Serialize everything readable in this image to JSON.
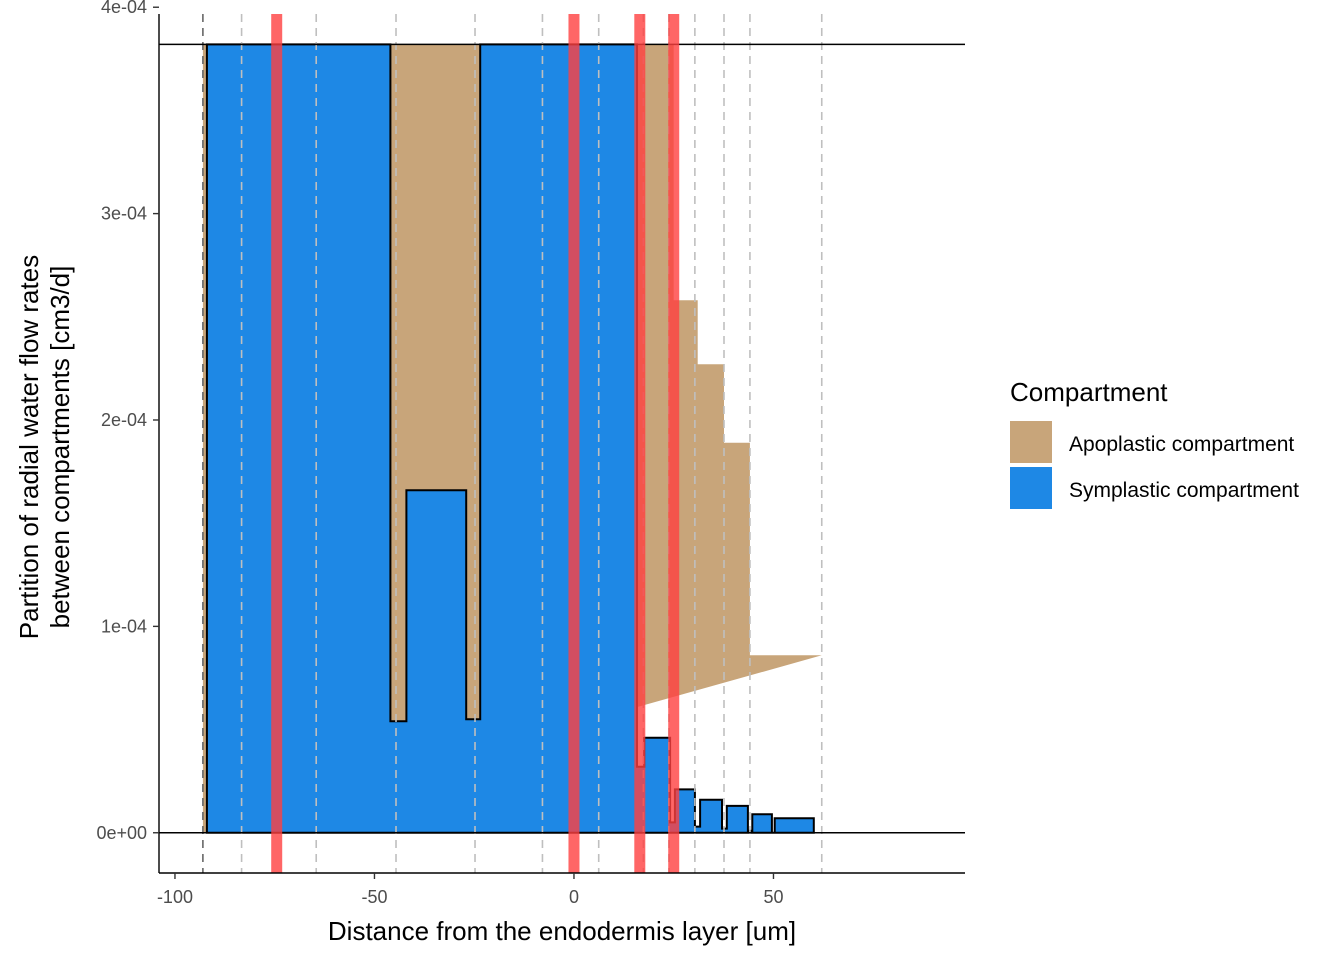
{
  "chart_data": {
    "type": "area",
    "xlabel": "Distance from the endodermis layer [um]",
    "ylabel": [
      "Partition of radial water flow rates",
      "between compartments [cm3/d]"
    ],
    "xlim": [
      -104,
      98
    ],
    "ylim": [
      -1.95e-05,
      0.0004035
    ],
    "x_ticks": [
      {
        "value": -100,
        "label": "-100"
      },
      {
        "value": -50,
        "label": "-50"
      },
      {
        "value": 0,
        "label": "0"
      },
      {
        "value": 50,
        "label": "50"
      }
    ],
    "y_ticks": [
      {
        "value": 0,
        "label": "0e+00"
      },
      {
        "value": 0.0001,
        "label": "1e-04"
      },
      {
        "value": 0.0002,
        "label": "2e-04"
      },
      {
        "value": 0.0003,
        "label": "3e-04"
      },
      {
        "value": 0.0004,
        "label": "4e-04"
      }
    ],
    "horizontal_lines": [
      0,
      0.000382
    ],
    "layer_boundaries": [
      -93,
      -83.3,
      -64.6,
      -44.6,
      -24.8,
      -7.9,
      6.2,
      17.4,
      23.8,
      30.3,
      37.6,
      44.1,
      62.1
    ],
    "red_bands": [
      -74.5,
      0,
      16.5,
      25
    ],
    "legend": {
      "title": "Compartment",
      "position": "right",
      "items": [
        {
          "label": "Apoplastic compartment",
          "color": "#C8A57A"
        },
        {
          "label": "Symplastic compartment",
          "color": "#1E88E5"
        }
      ]
    },
    "colors": {
      "apoplastic": "#C8A57A",
      "symplastic": "#1E88E5",
      "red_band": "#FF4040",
      "dashed_line": "#BFBFBF"
    },
    "series": [
      {
        "name": "Apoplastic compartment",
        "polygon": [
          [
            -93,
            0
          ],
          [
            -93,
            0.000382
          ],
          [
            16,
            0.000382
          ],
          [
            16,
            0.000382
          ],
          [
            25,
            0.000382
          ],
          [
            25,
            0.000258
          ],
          [
            31,
            0.000258
          ],
          [
            31,
            0.000227
          ],
          [
            37.6,
            0.000227
          ],
          [
            37.6,
            0.000189
          ],
          [
            44.1,
            0.000189
          ],
          [
            44.1,
            8.6e-05
          ],
          [
            62.1,
            8.6e-05
          ],
          [
            16,
            6.1e-05
          ],
          [
            16,
            0
          ]
        ]
      },
      {
        "name": "Symplastic compartment",
        "outline": [
          [
            -92,
            0
          ],
          [
            -92,
            0.000382
          ],
          [
            -46,
            0.000382
          ],
          [
            -46,
            5.4e-05
          ],
          [
            -42,
            5.4e-05
          ],
          [
            -42,
            0.000166
          ],
          [
            -27,
            0.000166
          ],
          [
            -27,
            5.5e-05
          ],
          [
            -23.5,
            5.5e-05
          ],
          [
            -23.5,
            0.000382
          ],
          [
            15.8,
            0.000382
          ],
          [
            15.8,
            3.2e-05
          ],
          [
            17.6,
            3.2e-05
          ],
          [
            17.6,
            4.6e-05
          ],
          [
            24.1,
            4.6e-05
          ],
          [
            24.1,
            5e-06
          ],
          [
            25.3,
            5e-06
          ],
          [
            25.3,
            2.1e-05
          ],
          [
            30.3,
            2.1e-05
          ],
          [
            30.3,
            3e-06
          ],
          [
            31.6,
            3e-06
          ],
          [
            31.6,
            1.6e-05
          ],
          [
            37.1,
            1.6e-05
          ],
          [
            37.1,
            2e-06
          ],
          [
            38.3,
            2e-06
          ],
          [
            38.3,
            1.3e-05
          ],
          [
            43.6,
            1.3e-05
          ],
          [
            43.6,
            1e-06
          ],
          [
            44.7,
            1e-06
          ],
          [
            44.7,
            9e-06
          ],
          [
            49.6,
            9e-06
          ],
          [
            49.6,
            0
          ],
          [
            50.3,
            0
          ],
          [
            50.3,
            7e-06
          ],
          [
            60.1,
            7e-06
          ],
          [
            60.1,
            0
          ]
        ]
      }
    ]
  }
}
